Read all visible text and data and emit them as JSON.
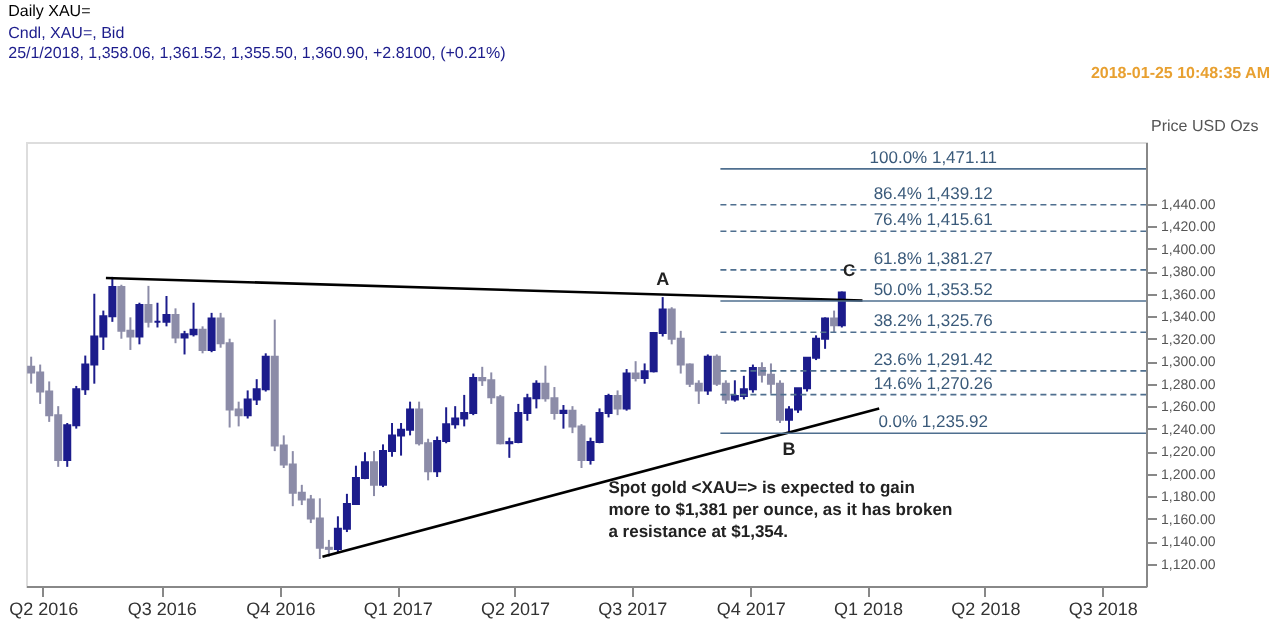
{
  "chart_data": {
    "type": "candlestick",
    "title": "Daily XAU=",
    "subtitle": [
      "Cndl, XAU=, Bid",
      "25/1/2018, 1,358.06, 1,361.52, 1,355.50, 1,360.90, +2.8100, (+0.21%)"
    ],
    "ylabel": "Price USD Ozs",
    "colors": [
      "#8c8ca8",
      "#8c8ca8",
      "#8c8ca8",
      "#8c8ca8",
      "#1c1c8c",
      "#1c1c8c",
      "#1c1c8c",
      "#1c1c8c",
      "#1c1c8c",
      "#1c1c8c",
      "#8c8ca8",
      "#8c8ca8",
      "#1c1c8c",
      "#8c8ca8",
      "#1c1c8c",
      "#1c1c8c",
      "#8c8ca8",
      "#1c1c8c",
      "#1c1c8c",
      "#8c8ca8",
      "#1c1c8c",
      "#8c8ca8",
      "#8c8ca8",
      "#8c8ca8",
      "#1c1c8c",
      "#1c1c8c",
      "#1c1c8c",
      "#8c8ca8",
      "#8c8ca8",
      "#8c8ca8",
      "#8c8ca8",
      "#8c8ca8",
      "#8c8ca8",
      "#8c8ca8",
      "#1c1c8c",
      "#1c1c8c",
      "#1c1c8c",
      "#1c1c8c",
      "#8c8ca8",
      "#1c1c8c",
      "#1c1c8c",
      "#1c1c8c",
      "#1c1c8c",
      "#8c8ca8",
      "#8c8ca8",
      "#1c1c8c",
      "#1c1c8c",
      "#1c1c8c",
      "#1c1c8c",
      "#1c1c8c",
      "#8c8ca8",
      "#8c8ca8",
      "#8c8ca8",
      "#1c1c8c",
      "#1c1c8c",
      "#1c1c8c",
      "#1c1c8c",
      "#8c8ca8",
      "#8c8ca8",
      "#1c1c8c",
      "#8c8ca8",
      "#8c8ca8",
      "#1c1c8c",
      "#1c1c8c",
      "#1c1c8c",
      "#8c8ca8",
      "#1c1c8c",
      "#8c8ca8",
      "#1c1c8c",
      "#1c1c8c",
      "#1c1c8c",
      "#8c8ca8",
      "#8c8ca8",
      "#8c8ca8",
      "#8c8ca8",
      "#1c1c8c",
      "#8c8ca8",
      "#8c8ca8",
      "#1c1c8c",
      "#1c1c8c",
      "#1c1c8c",
      "#8c8ca8",
      "#8c8ca8",
      "#8c8ca8",
      "#1c1c8c",
      "#1c1c8c",
      "#1c1c8c",
      "#1c1c8c",
      "#1c1c8c",
      "#8c8ca8",
      "#1c1c8c"
    ],
    "x": [
      "2016-05-06",
      "2016-05-13",
      "2016-05-20",
      "2016-05-27",
      "2016-06-03",
      "2016-06-10",
      "2016-06-17",
      "2016-06-24",
      "2016-07-01",
      "2016-07-08",
      "2016-07-15",
      "2016-07-22",
      "2016-07-29",
      "2016-08-05",
      "2016-08-12",
      "2016-08-19",
      "2016-08-26",
      "2016-09-02",
      "2016-09-09",
      "2016-09-16",
      "2016-09-23",
      "2016-09-30",
      "2016-10-07",
      "2016-10-14",
      "2016-10-21",
      "2016-10-28",
      "2016-11-04",
      "2016-11-11",
      "2016-11-18",
      "2016-11-25",
      "2016-12-02",
      "2016-12-09",
      "2016-12-16",
      "2016-12-23",
      "2016-12-30",
      "2017-01-06",
      "2017-01-13",
      "2017-01-20",
      "2017-01-27",
      "2017-02-03",
      "2017-02-10",
      "2017-02-17",
      "2017-02-24",
      "2017-03-03",
      "2017-03-10",
      "2017-03-17",
      "2017-03-24",
      "2017-03-31",
      "2017-04-07",
      "2017-04-14",
      "2017-04-21",
      "2017-04-28",
      "2017-05-05",
      "2017-05-12",
      "2017-05-19",
      "2017-05-26",
      "2017-06-02",
      "2017-06-09",
      "2017-06-16",
      "2017-06-23",
      "2017-06-30",
      "2017-07-07",
      "2017-07-14",
      "2017-07-21",
      "2017-07-28",
      "2017-08-04",
      "2017-08-11",
      "2017-08-18",
      "2017-08-25",
      "2017-09-01",
      "2017-09-08",
      "2017-09-15",
      "2017-09-22",
      "2017-09-29",
      "2017-10-06",
      "2017-10-13",
      "2017-10-20",
      "2017-10-27",
      "2017-11-03",
      "2017-11-10",
      "2017-11-17",
      "2017-11-24",
      "2017-12-01",
      "2017-12-08",
      "2017-12-15",
      "2017-12-22",
      "2017-12-29",
      "2018-01-05",
      "2018-01-12",
      "2018-01-19",
      "2018-01-25"
    ],
    "ohlc": [
      [
        1295,
        1304,
        1280,
        1290
      ],
      [
        1290,
        1297,
        1262,
        1273
      ],
      [
        1273,
        1282,
        1246,
        1252
      ],
      [
        1252,
        1260,
        1206,
        1212
      ],
      [
        1212,
        1245,
        1206,
        1243
      ],
      [
        1243,
        1278,
        1240,
        1275
      ],
      [
        1275,
        1305,
        1270,
        1297
      ],
      [
        1297,
        1360,
        1280,
        1322
      ],
      [
        1322,
        1345,
        1310,
        1340
      ],
      [
        1340,
        1375,
        1335,
        1366
      ],
      [
        1366,
        1368,
        1320,
        1327
      ],
      [
        1327,
        1339,
        1310,
        1322
      ],
      [
        1322,
        1352,
        1315,
        1350
      ],
      [
        1350,
        1367,
        1330,
        1335
      ],
      [
        1335,
        1352,
        1330,
        1335
      ],
      [
        1335,
        1358,
        1331,
        1341
      ],
      [
        1341,
        1347,
        1316,
        1321
      ],
      [
        1321,
        1327,
        1306,
        1324
      ],
      [
        1324,
        1352,
        1322,
        1328
      ],
      [
        1328,
        1331,
        1307,
        1310
      ],
      [
        1310,
        1343,
        1308,
        1338
      ],
      [
        1338,
        1343,
        1312,
        1316
      ],
      [
        1316,
        1320,
        1241,
        1257
      ],
      [
        1257,
        1264,
        1242,
        1252
      ],
      [
        1252,
        1274,
        1249,
        1266
      ],
      [
        1266,
        1284,
        1261,
        1275
      ],
      [
        1275,
        1307,
        1273,
        1304
      ],
      [
        1304,
        1337,
        1220,
        1225
      ],
      [
        1225,
        1234,
        1205,
        1208
      ],
      [
        1208,
        1220,
        1171,
        1183
      ],
      [
        1183,
        1190,
        1172,
        1177
      ],
      [
        1177,
        1181,
        1156,
        1160
      ],
      [
        1160,
        1178,
        1124,
        1134
      ],
      [
        1134,
        1141,
        1126,
        1133
      ],
      [
        1133,
        1162,
        1130,
        1151
      ],
      [
        1151,
        1182,
        1148,
        1173
      ],
      [
        1173,
        1207,
        1173,
        1196
      ],
      [
        1196,
        1219,
        1195,
        1210
      ],
      [
        1210,
        1220,
        1180,
        1190
      ],
      [
        1190,
        1226,
        1188,
        1220
      ],
      [
        1220,
        1245,
        1215,
        1234
      ],
      [
        1234,
        1245,
        1216,
        1239
      ],
      [
        1239,
        1264,
        1234,
        1257
      ],
      [
        1257,
        1264,
        1225,
        1227
      ],
      [
        1227,
        1231,
        1194,
        1202
      ],
      [
        1202,
        1233,
        1197,
        1229
      ],
      [
        1229,
        1259,
        1227,
        1244
      ],
      [
        1244,
        1260,
        1240,
        1249
      ],
      [
        1249,
        1270,
        1242,
        1254
      ],
      [
        1254,
        1289,
        1252,
        1285
      ],
      [
        1285,
        1295,
        1278,
        1283
      ],
      [
        1283,
        1290,
        1262,
        1268
      ],
      [
        1268,
        1270,
        1226,
        1227
      ],
      [
        1227,
        1232,
        1214,
        1228
      ],
      [
        1228,
        1262,
        1227,
        1254
      ],
      [
        1254,
        1271,
        1247,
        1267
      ],
      [
        1267,
        1283,
        1258,
        1280
      ],
      [
        1280,
        1296,
        1264,
        1267
      ],
      [
        1267,
        1277,
        1248,
        1254
      ],
      [
        1254,
        1261,
        1240,
        1256
      ],
      [
        1256,
        1260,
        1236,
        1242
      ],
      [
        1242,
        1244,
        1205,
        1212
      ],
      [
        1212,
        1232,
        1208,
        1228
      ],
      [
        1228,
        1258,
        1227,
        1254
      ],
      [
        1254,
        1271,
        1250,
        1269
      ],
      [
        1269,
        1274,
        1252,
        1258
      ],
      [
        1258,
        1293,
        1256,
        1289
      ],
      [
        1289,
        1300,
        1282,
        1285
      ],
      [
        1285,
        1298,
        1280,
        1291
      ],
      [
        1291,
        1326,
        1290,
        1325
      ],
      [
        1325,
        1357,
        1322,
        1346
      ],
      [
        1346,
        1348,
        1315,
        1320
      ],
      [
        1320,
        1327,
        1289,
        1297
      ],
      [
        1297,
        1298,
        1277,
        1280
      ],
      [
        1280,
        1283,
        1262,
        1274
      ],
      [
        1274,
        1306,
        1270,
        1304
      ],
      [
        1304,
        1306,
        1278,
        1280
      ],
      [
        1280,
        1283,
        1262,
        1266
      ],
      [
        1266,
        1283,
        1264,
        1269
      ],
      [
        1269,
        1287,
        1266,
        1275
      ],
      [
        1275,
        1297,
        1272,
        1294
      ],
      [
        1294,
        1299,
        1281,
        1288
      ],
      [
        1288,
        1298,
        1271,
        1280
      ],
      [
        1280,
        1283,
        1245,
        1248
      ],
      [
        1248,
        1260,
        1236,
        1257
      ],
      [
        1257,
        1276,
        1254,
        1276
      ],
      [
        1276,
        1303,
        1273,
        1303
      ],
      [
        1303,
        1323,
        1301,
        1320
      ],
      [
        1320,
        1339,
        1311,
        1338
      ],
      [
        1338,
        1345,
        1326,
        1332
      ],
      [
        1332,
        1362,
        1330,
        1361
      ]
    ],
    "series": [
      {
        "type": "line",
        "color": "#000000",
        "x": [
          "2016-07-03",
          "2018-02-10"
        ],
        "values": [
          1374,
          1354
        ]
      },
      {
        "type": "line",
        "color": "#000000",
        "x": [
          "2016-12-18",
          "2018-02-23"
        ],
        "values": [
          1126,
          1258
        ]
      }
    ],
    "xlim": [
      "2016-05-02",
      "2018-09-18"
    ],
    "xticks": [
      {
        "value": "2016-05-15",
        "label": "Q2 2016"
      },
      {
        "value": "2016-08-15",
        "label": "Q3 2016"
      },
      {
        "value": "2016-11-15",
        "label": "Q4 2016"
      },
      {
        "value": "2017-02-14",
        "label": "Q1 2017"
      },
      {
        "value": "2017-05-16",
        "label": "Q2 2017"
      },
      {
        "value": "2017-08-15",
        "label": "Q3 2017"
      },
      {
        "value": "2017-11-15",
        "label": "Q4 2017"
      },
      {
        "value": "2018-02-14",
        "label": "Q1 2018"
      },
      {
        "value": "2018-05-16",
        "label": "Q2 2018"
      },
      {
        "value": "2018-08-15",
        "label": "Q3 2018"
      }
    ],
    "ylim": [
      1100,
      1495
    ],
    "yticks": [
      {
        "value": 1120,
        "label": "1,120.00"
      },
      {
        "value": 1140,
        "label": "1,140.00"
      },
      {
        "value": 1160,
        "label": "1,160.00"
      },
      {
        "value": 1180,
        "label": "1,180.00"
      },
      {
        "value": 1200,
        "label": "1,200.00"
      },
      {
        "value": 1220,
        "label": "1,220.00"
      },
      {
        "value": 1240,
        "label": "1,240.00"
      },
      {
        "value": 1260,
        "label": "1,260.00"
      },
      {
        "value": 1280,
        "label": "1,280.00"
      },
      {
        "value": 1300,
        "label": "1,300.00"
      },
      {
        "value": 1320,
        "label": "1,320.00"
      },
      {
        "value": 1340,
        "label": "1,340.00"
      },
      {
        "value": 1360,
        "label": "1,360.00"
      },
      {
        "value": 1380,
        "label": "1,380.00"
      },
      {
        "value": 1400,
        "label": "1,400.00"
      },
      {
        "value": 1420,
        "label": "1,420.00"
      },
      {
        "value": 1440,
        "label": "1,440.00"
      }
    ],
    "ref_lines": [
      {
        "axis": "y",
        "value": 1471.11,
        "label": "100.0% 1,471.11",
        "color": "#4f6f8f",
        "line_style": "solid"
      },
      {
        "axis": "y",
        "value": 1439.12,
        "label": "86.4% 1,439.12",
        "color": "#4f6f8f",
        "line_style": "dashed"
      },
      {
        "axis": "y",
        "value": 1415.61,
        "label": "76.4% 1,415.61",
        "color": "#4f6f8f",
        "line_style": "dashed"
      },
      {
        "axis": "y",
        "value": 1381.27,
        "label": "61.8% 1,381.27",
        "color": "#4f6f8f",
        "line_style": "dashed"
      },
      {
        "axis": "y",
        "value": 1353.52,
        "label": "50.0% 1,353.52",
        "color": "#4f6f8f",
        "line_style": "solid"
      },
      {
        "axis": "y",
        "value": 1325.76,
        "label": "38.2% 1,325.76",
        "color": "#4f6f8f",
        "line_style": "dashed"
      },
      {
        "axis": "y",
        "value": 1291.42,
        "label": "23.6% 1,291.42",
        "color": "#4f6f8f",
        "line_style": "dashed"
      },
      {
        "axis": "y",
        "value": 1270.26,
        "label": "14.6% 1,270.26",
        "color": "#4f6f8f",
        "line_style": "dashed"
      },
      {
        "axis": "y",
        "value": 1235.92,
        "label": "0.0% 1,235.92",
        "color": "#4f6f8f",
        "line_style": "solid"
      }
    ],
    "annotations": [
      {
        "text": "A",
        "x": "2017-09-08",
        "y": 1357
      },
      {
        "text": "B",
        "x": "2017-12-15",
        "y": 1236
      },
      "C",
      "2018-01-25 10:48:35 AM",
      "Spot gold <XAU=> is expected to gain\nmore to $1,381 per ounce, as it has broken\na resistance at $1,354."
    ],
    "grid": false
  }
}
